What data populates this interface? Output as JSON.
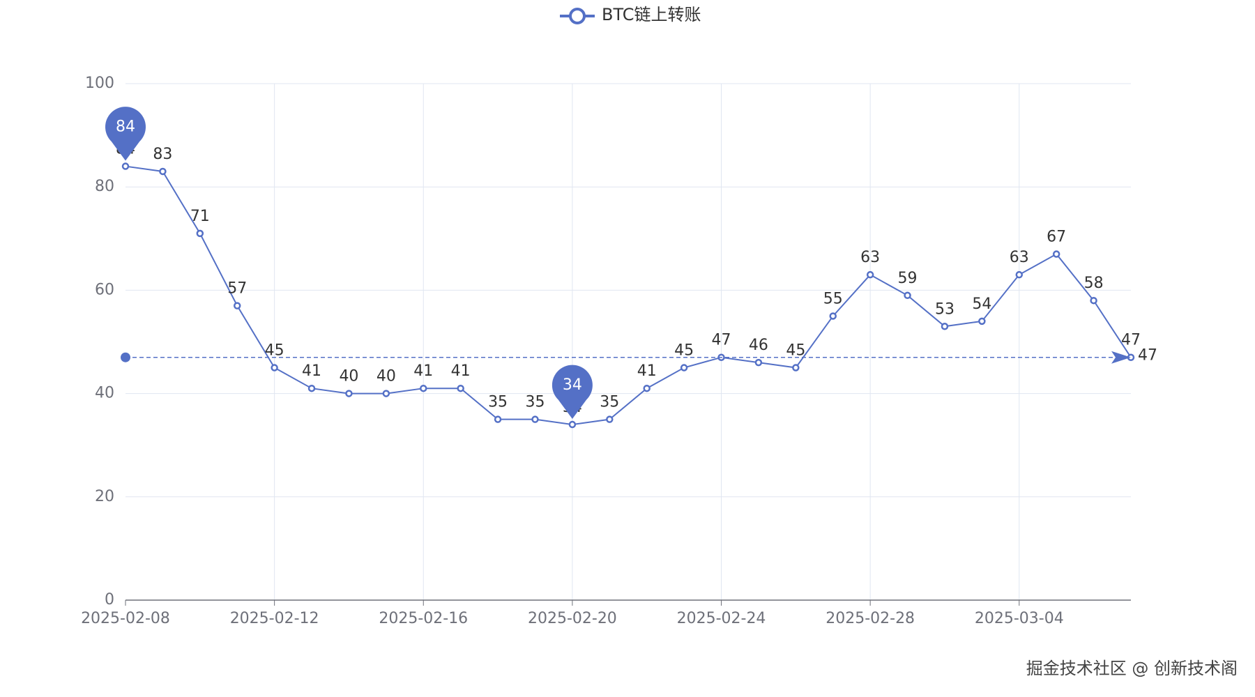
{
  "chart_data": {
    "type": "line",
    "legend": "BTC链上转账",
    "watermark": "掘金技术社区 @ 创新技术阁",
    "categories": [
      "2025-02-08",
      null,
      null,
      null,
      "2025-02-12",
      null,
      null,
      null,
      "2025-02-16",
      null,
      null,
      null,
      "2025-02-20",
      null,
      null,
      null,
      "2025-02-24",
      null,
      null,
      null,
      "2025-02-28",
      null,
      null,
      null,
      "2025-03-04",
      null,
      null,
      null
    ],
    "series": [
      {
        "name": "BTC链上转账",
        "color": "#5470c6",
        "values": [
          84,
          83,
          71,
          57,
          45,
          41,
          40,
          40,
          41,
          41,
          35,
          35,
          34,
          35,
          41,
          45,
          47,
          46,
          45,
          55,
          63,
          59,
          53,
          54,
          63,
          67,
          58,
          47
        ]
      }
    ],
    "mark_points": [
      84,
      34
    ],
    "mark_line": 47,
    "ylim": [
      0,
      100
    ],
    "yticks": [
      0,
      20,
      40,
      60,
      80,
      100
    ],
    "grid": true
  }
}
